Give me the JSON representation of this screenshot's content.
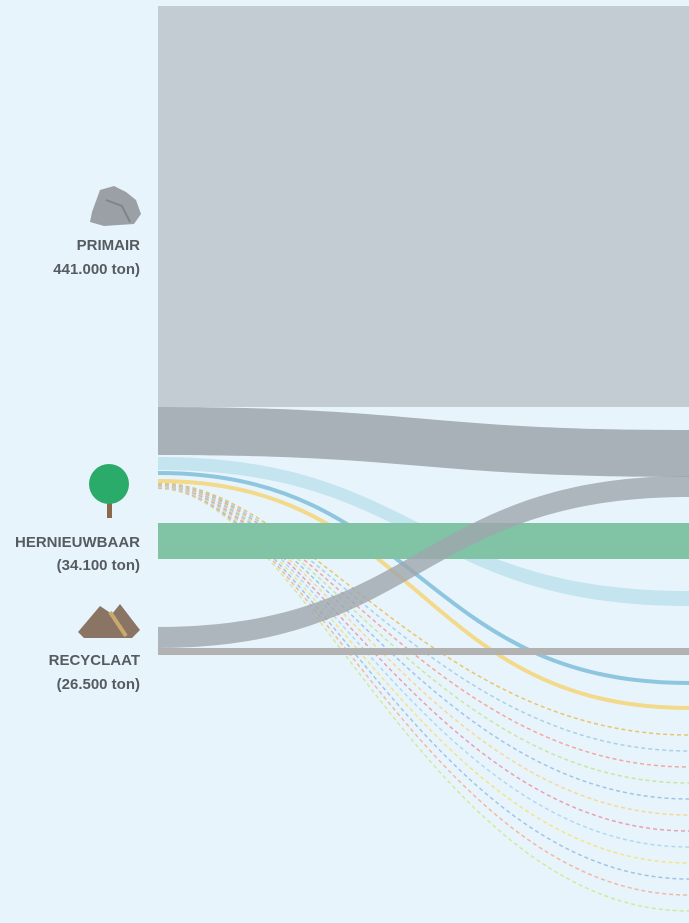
{
  "nodes": [
    {
      "label": "PRIMAIR",
      "amount": "441.000 ton)"
    },
    {
      "label": "HERNIEUWBAAR",
      "amount": "(34.100 ton)"
    },
    {
      "label": "RECYCLAAT",
      "amount": "(26.500 ton)"
    }
  ]
}
